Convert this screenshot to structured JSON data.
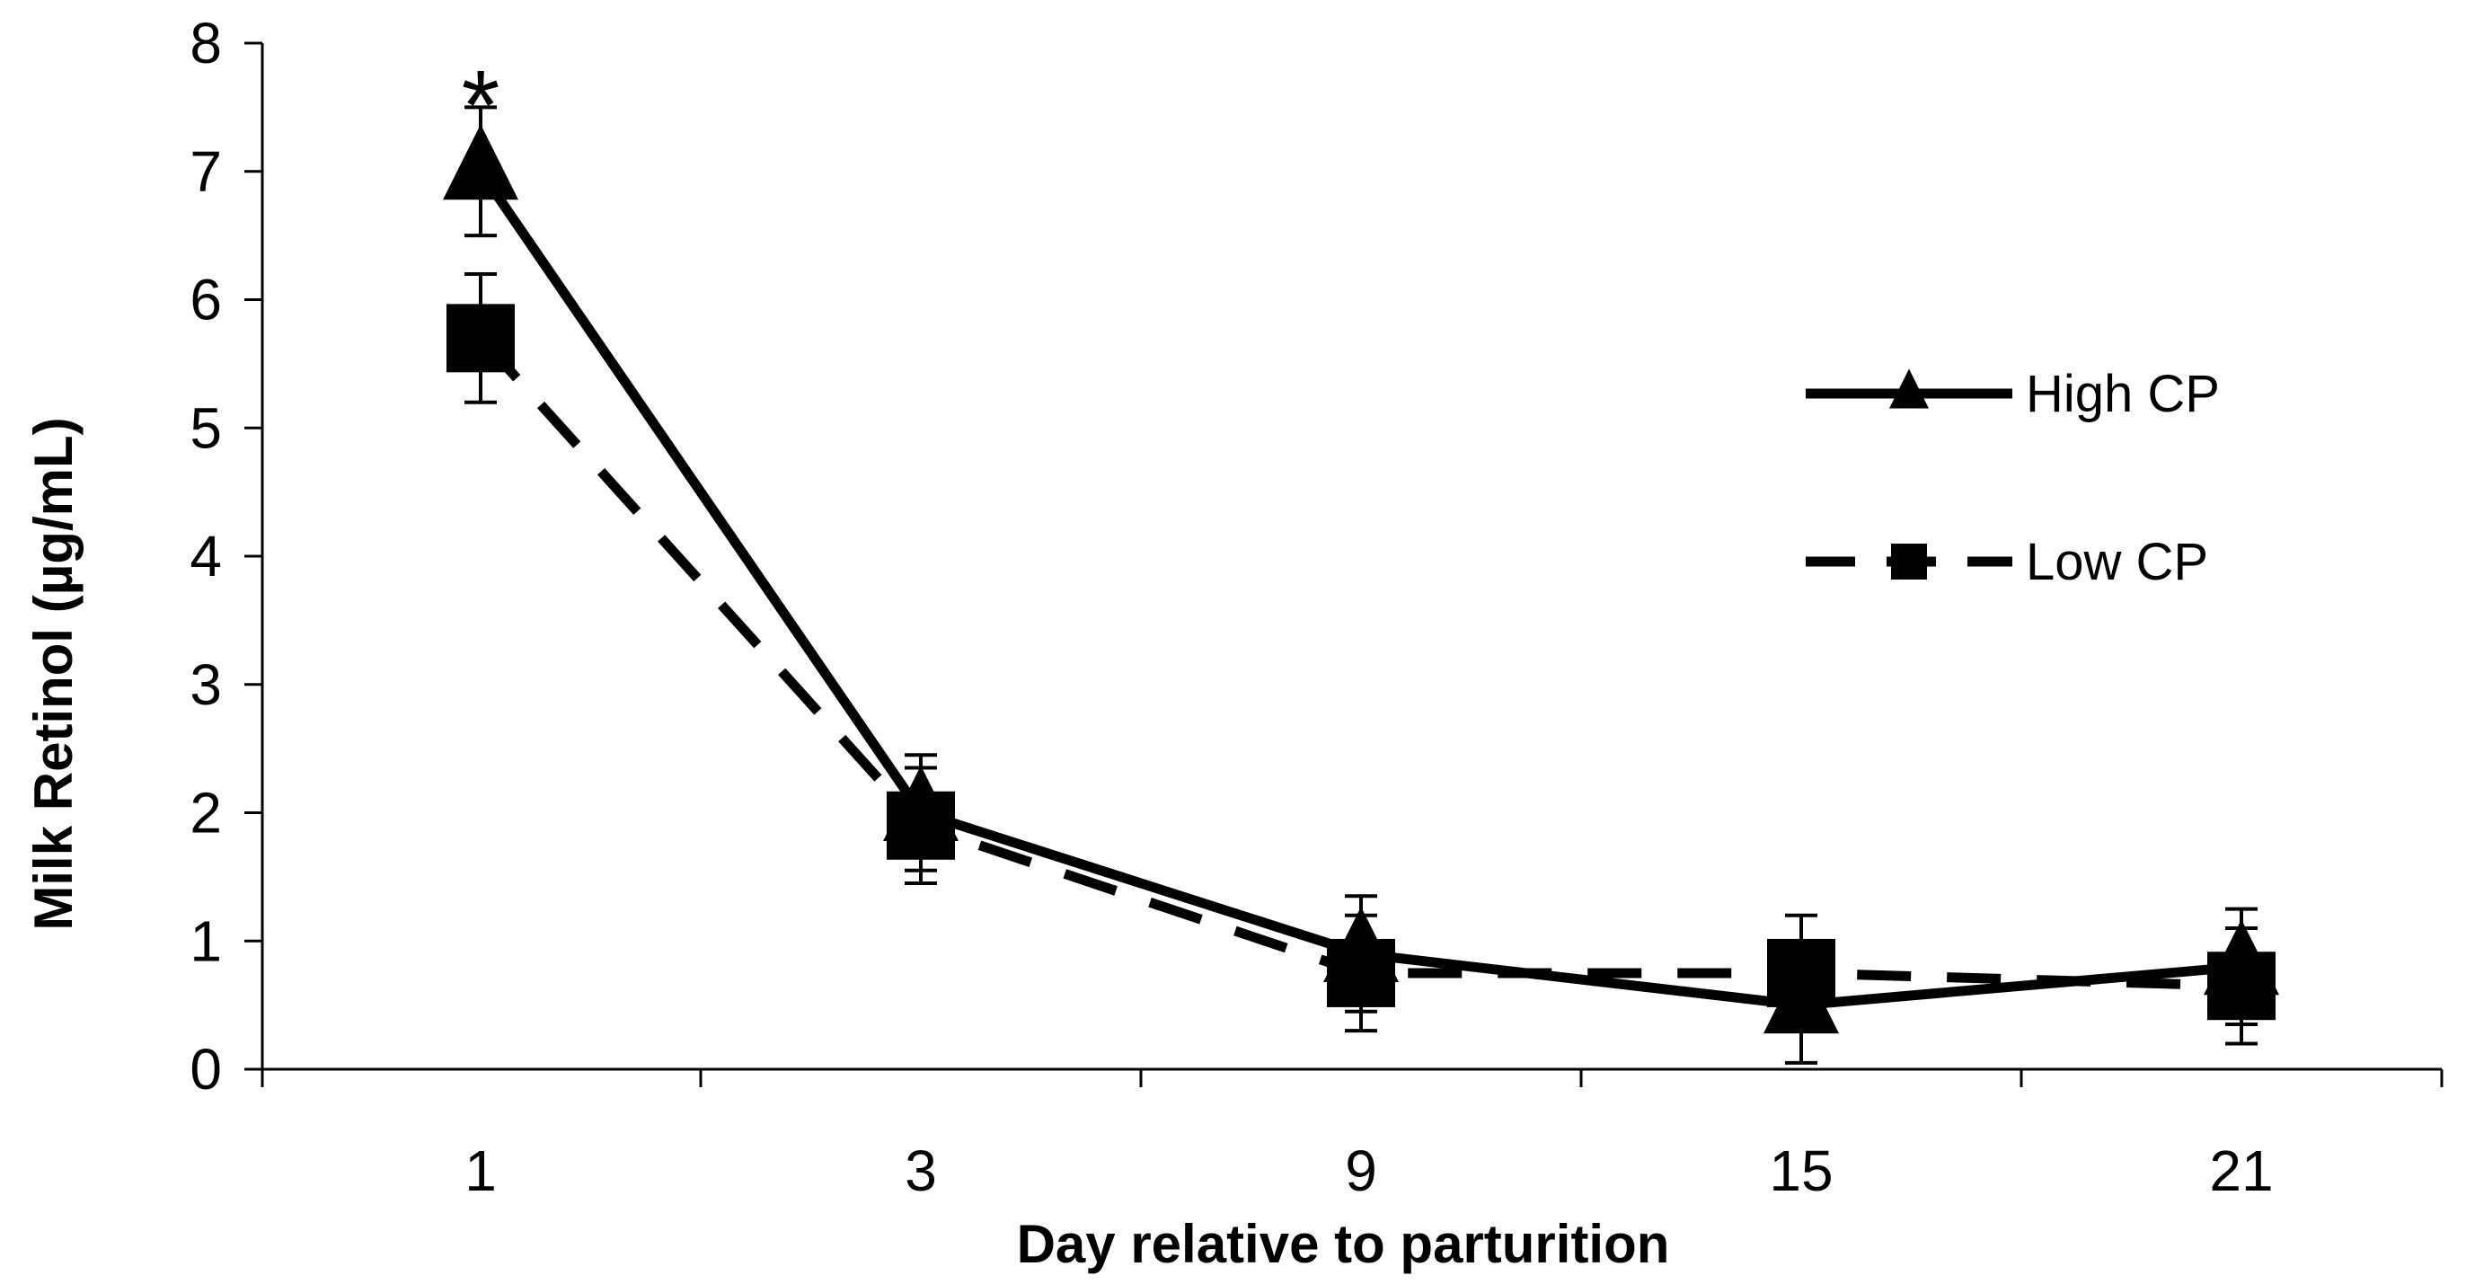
{
  "chart_data": {
    "type": "line",
    "title": "",
    "xlabel": "Day relative to parturition",
    "ylabel": "Milk Retinol (µg/mL)",
    "categories": [
      "1",
      "3",
      "9",
      "15",
      "21"
    ],
    "ylim": [
      0,
      8
    ],
    "yticks": [
      "0",
      "1",
      "2",
      "3",
      "4",
      "5",
      "6",
      "7",
      "8"
    ],
    "grid": false,
    "legend_position": "right",
    "series": [
      {
        "name": "High CP",
        "marker": "triangle",
        "line_style": "solid",
        "values": [
          7.0,
          2.0,
          0.9,
          0.5,
          0.8
        ],
        "errors": [
          0.5,
          0.45,
          0.45,
          0.45,
          0.45
        ]
      },
      {
        "name": "Low CP",
        "marker": "square",
        "line_style": "dashed",
        "values": [
          5.7,
          1.9,
          0.75,
          0.75,
          0.65
        ],
        "errors": [
          0.5,
          0.45,
          0.45,
          0.45,
          0.45
        ]
      }
    ],
    "annotations": [
      {
        "text": "*",
        "category": "1"
      }
    ]
  },
  "colors": {
    "series": "#000000",
    "axis": "#000000",
    "background": "#ffffff"
  }
}
